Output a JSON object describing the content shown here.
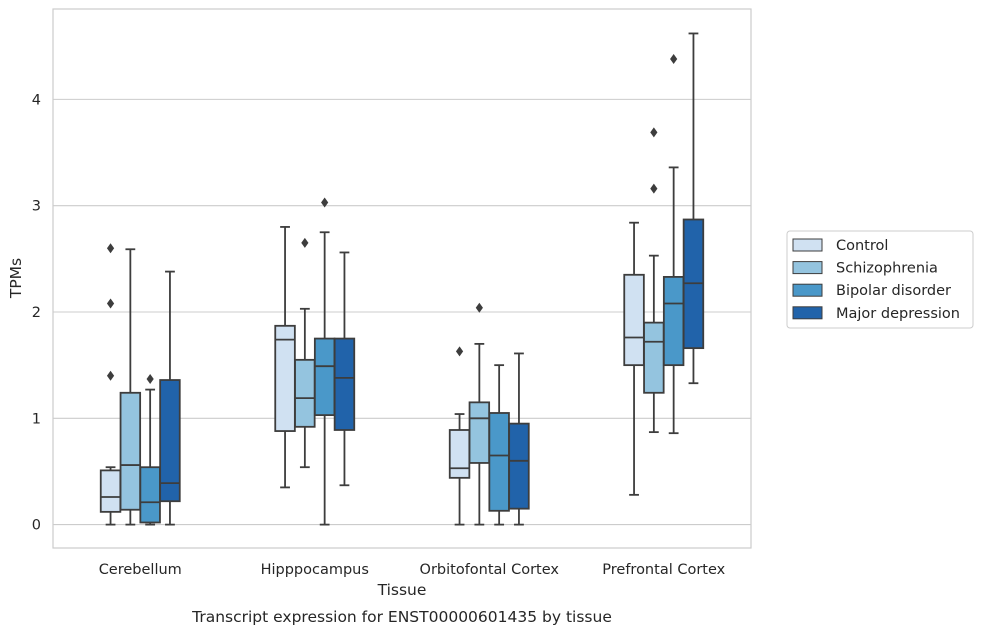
{
  "chart_data": {
    "type": "boxplot",
    "title": "",
    "caption": "Transcript expression for ENST00000601435 by tissue",
    "xlabel": "Tissue",
    "ylabel": "TPMs",
    "ylim": [
      -0.22,
      4.85
    ],
    "yticks": [
      0,
      1,
      2,
      3,
      4
    ],
    "grid": "horizontal",
    "legend_position": "right",
    "categories": [
      "Cerebellum",
      "Hipppocampus",
      "Orbitofontal Cortex",
      "Prefrontal Cortex"
    ],
    "series": [
      {
        "name": "Control",
        "color": "#d0e1f2",
        "boxes": [
          {
            "whislo": 0.0,
            "q1": 0.12,
            "med": 0.26,
            "q3": 0.51,
            "whishi": 0.54,
            "fliers": [
              1.4,
              2.08,
              2.6
            ]
          },
          {
            "whislo": 0.35,
            "q1": 0.88,
            "med": 1.74,
            "q3": 1.87,
            "whishi": 2.8,
            "fliers": []
          },
          {
            "whislo": 0.0,
            "q1": 0.44,
            "med": 0.53,
            "q3": 0.89,
            "whishi": 1.04,
            "fliers": [
              1.63
            ]
          },
          {
            "whislo": 0.28,
            "q1": 1.5,
            "med": 1.76,
            "q3": 2.35,
            "whishi": 2.84,
            "fliers": []
          }
        ]
      },
      {
        "name": "Schizophrenia",
        "color": "#94c4df",
        "boxes": [
          {
            "whislo": 0.0,
            "q1": 0.14,
            "med": 0.56,
            "q3": 1.24,
            "whishi": 2.59,
            "fliers": []
          },
          {
            "whislo": 0.54,
            "q1": 0.92,
            "med": 1.19,
            "q3": 1.55,
            "whishi": 2.03,
            "fliers": [
              2.65
            ]
          },
          {
            "whislo": 0.0,
            "q1": 0.58,
            "med": 1.0,
            "q3": 1.15,
            "whishi": 1.7,
            "fliers": [
              2.04
            ]
          },
          {
            "whislo": 0.87,
            "q1": 1.24,
            "med": 1.72,
            "q3": 1.9,
            "whishi": 2.53,
            "fliers": [
              3.16,
              3.69
            ]
          }
        ]
      },
      {
        "name": "Bipolar disorder",
        "color": "#4a98c9",
        "boxes": [
          {
            "whislo": 0.0,
            "q1": 0.02,
            "med": 0.21,
            "q3": 0.54,
            "whishi": 1.27,
            "fliers": [
              1.37
            ]
          },
          {
            "whislo": 0.0,
            "q1": 1.03,
            "med": 1.49,
            "q3": 1.75,
            "whishi": 2.75,
            "fliers": [
              3.03
            ]
          },
          {
            "whislo": 0.0,
            "q1": 0.13,
            "med": 0.65,
            "q3": 1.05,
            "whishi": 1.5,
            "fliers": []
          },
          {
            "whislo": 0.86,
            "q1": 1.5,
            "med": 2.08,
            "q3": 2.33,
            "whishi": 3.36,
            "fliers": [
              4.38
            ]
          }
        ]
      },
      {
        "name": "Major depression",
        "color": "#2163aa",
        "boxes": [
          {
            "whislo": 0.0,
            "q1": 0.22,
            "med": 0.39,
            "q3": 1.36,
            "whishi": 2.38,
            "fliers": []
          },
          {
            "whislo": 0.37,
            "q1": 0.89,
            "med": 1.38,
            "q3": 1.75,
            "whishi": 2.56,
            "fliers": []
          },
          {
            "whislo": 0.0,
            "q1": 0.15,
            "med": 0.6,
            "q3": 0.95,
            "whishi": 1.61,
            "fliers": []
          },
          {
            "whislo": 1.33,
            "q1": 1.66,
            "med": 2.27,
            "q3": 2.87,
            "whishi": 4.62,
            "fliers": []
          }
        ]
      }
    ]
  }
}
